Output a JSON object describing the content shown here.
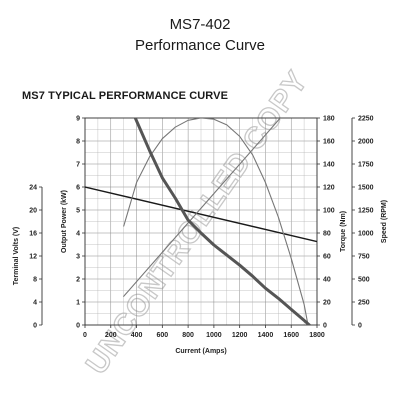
{
  "header": {
    "model": "MS7-402",
    "subtitle": "Performance Curve"
  },
  "watermark": "UNCONTROLLED COPY",
  "chart_data": {
    "type": "line",
    "title": "MS7 TYPICAL PERFORMANCE CURVE",
    "xlabel": "Current (Amps)",
    "xlim": [
      0,
      1800
    ],
    "x_ticks": [
      0,
      200,
      400,
      600,
      800,
      1000,
      1200,
      1400,
      1600,
      1800
    ],
    "grid": true,
    "axes": {
      "terminal_volts": {
        "label": "Terminal Volts (V)",
        "lim": [
          0,
          24
        ],
        "ticks": [
          0,
          4,
          8,
          12,
          16,
          20,
          24
        ]
      },
      "output_power": {
        "label": "Output Power (kW)",
        "lim": [
          0,
          9
        ],
        "ticks": [
          0,
          1,
          2,
          3,
          4,
          5,
          6,
          7,
          8,
          9
        ]
      },
      "torque": {
        "label": "Torque (Nm)",
        "lim": [
          0,
          180
        ],
        "ticks": [
          0,
          20,
          40,
          60,
          80,
          100,
          120,
          140,
          160,
          180
        ]
      },
      "speed": {
        "label": "Speed (RPM)",
        "lim": [
          0,
          2250
        ],
        "ticks": [
          0,
          250,
          500,
          750,
          1000,
          1250,
          1500,
          1750,
          2000,
          2250
        ]
      }
    },
    "series": [
      {
        "axis": "terminal_volts",
        "color": "#1a1a1a",
        "width": 1.4,
        "x": [
          0,
          1800
        ],
        "y": [
          24.0,
          14.5
        ]
      },
      {
        "axis": "output_power",
        "color": "#777777",
        "width": 1.1,
        "x": [
          300,
          400,
          500,
          600,
          700,
          800,
          900,
          1000,
          1100,
          1200,
          1300,
          1400,
          1500,
          1600,
          1700,
          1730
        ],
        "y": [
          4.3,
          6.2,
          7.3,
          8.1,
          8.6,
          8.9,
          9.0,
          8.95,
          8.7,
          8.2,
          7.4,
          6.2,
          4.7,
          2.9,
          0.9,
          0.0
        ]
      },
      {
        "axis": "torque",
        "color": "#777777",
        "width": 1.1,
        "x": [
          300,
          700,
          1100,
          1500,
          1730
        ],
        "y": [
          25,
          76,
          127,
          178,
          207
        ]
      },
      {
        "axis": "speed",
        "color": "#555555",
        "width": 3,
        "x": [
          390,
          500,
          600,
          700,
          800,
          900,
          1000,
          1100,
          1200,
          1300,
          1400,
          1500,
          1600,
          1700,
          1740
        ],
        "y": [
          2250,
          1900,
          1600,
          1380,
          1140,
          1000,
          870,
          760,
          650,
          530,
          400,
          290,
          170,
          50,
          0
        ]
      }
    ]
  }
}
